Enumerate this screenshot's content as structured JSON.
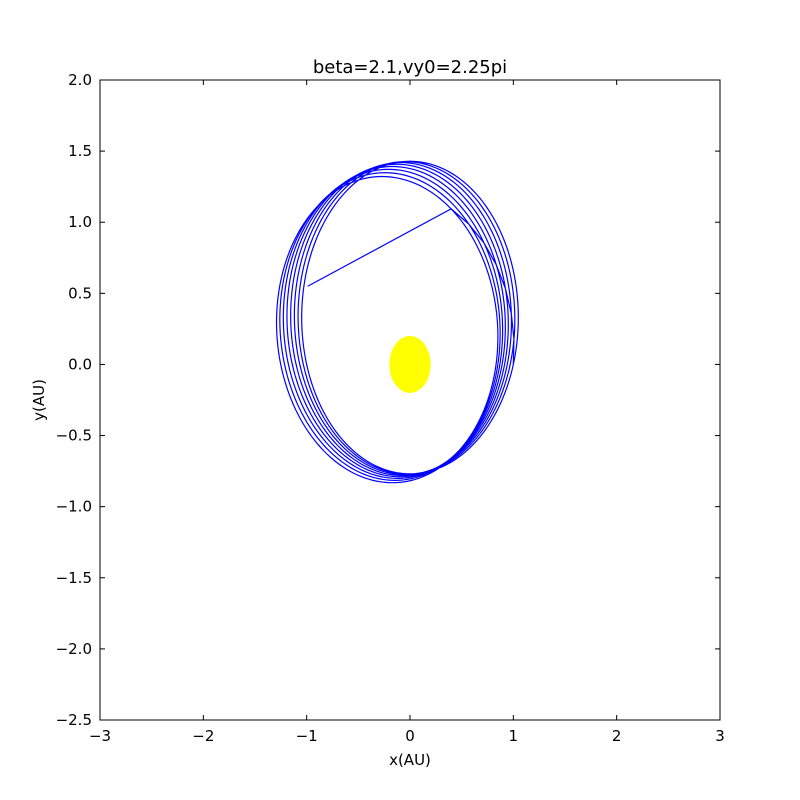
{
  "chart_data": {
    "type": "line",
    "title": "beta=2.1,vy0=2.25pi",
    "xlabel": "x(AU)",
    "ylabel": "y(AU)",
    "xlim": [
      -3,
      3
    ],
    "ylim": [
      -2.5,
      2.0
    ],
    "xticks": [
      -3,
      -2,
      -1,
      0,
      1,
      2,
      3
    ],
    "xtick_labels": [
      "−3",
      "−2",
      "−1",
      "0",
      "1",
      "2",
      "3"
    ],
    "yticks": [
      -2.5,
      -2.0,
      -1.5,
      -1.0,
      -0.5,
      0.0,
      0.5,
      1.0,
      1.5,
      2.0
    ],
    "ytick_labels": [
      "−2.5",
      "−2.0",
      "−1.5",
      "−1.0",
      "−0.5",
      "0.0",
      "0.5",
      "1.0",
      "1.5",
      "2.0"
    ],
    "grid": false,
    "series": [
      {
        "color": "#0000ff",
        "style": "precessing elliptical orbit",
        "start": [
          1.0,
          0.0
        ],
        "end": [
          -0.99,
          0.55
        ],
        "orbit_start_angle_deg": [
          0,
          10,
          20,
          30,
          40,
          50,
          60,
          70,
          80,
          90,
          100,
          110,
          120,
          130,
          140,
          150
        ],
        "orbit_end_angle_deg": [
          360,
          370,
          380,
          390,
          400,
          410,
          420,
          430,
          440,
          450,
          460,
          470,
          480,
          490,
          500,
          510
        ],
        "orbit_perihelion_deg": [
          270,
          276,
          282,
          288,
          294,
          300,
          306,
          312
        ],
        "semi_latus_rectum": 1.0,
        "eccentricity": 0.3
      }
    ],
    "markers": [
      {
        "name": "Sun",
        "x": 0.0,
        "y": 0.0,
        "radius": 0.2,
        "color": "#ffff00"
      }
    ]
  }
}
